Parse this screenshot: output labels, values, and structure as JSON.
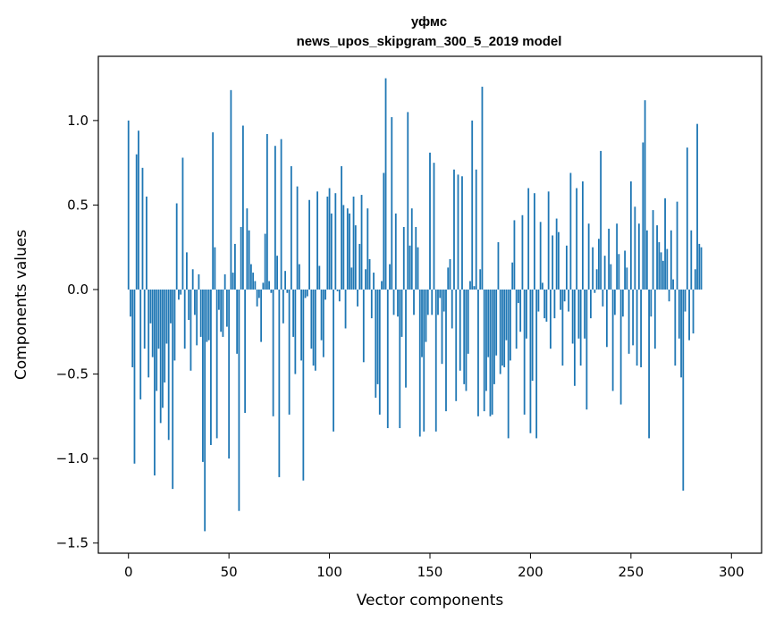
{
  "chart_data": {
    "type": "bar",
    "title_line1": "уфмс",
    "title_line2": "news_upos_skipgram_300_5_2019 model",
    "xlabel": "Vector components",
    "ylabel": "Components values",
    "xlim": [
      -15,
      315
    ],
    "ylim": [
      -1.56,
      1.38
    ],
    "xticks": [
      0,
      50,
      100,
      150,
      200,
      250,
      300
    ],
    "xtick_labels": [
      "0",
      "50",
      "100",
      "150",
      "200",
      "250",
      "300"
    ],
    "yticks": [
      -1.5,
      -1.0,
      -0.5,
      0.0,
      0.5,
      1.0
    ],
    "ytick_labels": [
      "−1.5",
      "−1.0",
      "−0.5",
      "0.0",
      "0.5",
      "1.0"
    ],
    "bar_color": "#1f77b4",
    "values": [
      1.0,
      -0.16,
      -0.46,
      -1.03,
      0.8,
      0.94,
      -0.65,
      0.72,
      -0.35,
      0.55,
      -0.52,
      -0.2,
      -0.4,
      -1.1,
      -0.6,
      -0.35,
      -0.79,
      -0.7,
      -0.55,
      -0.32,
      -0.89,
      -0.2,
      -1.18,
      -0.42,
      0.51,
      -0.06,
      -0.03,
      0.78,
      -0.35,
      0.22,
      -0.18,
      -0.48,
      0.12,
      -0.15,
      -0.33,
      0.09,
      -0.28,
      -1.02,
      -1.43,
      -0.31,
      -0.3,
      -0.92,
      0.93,
      0.25,
      -0.88,
      -0.12,
      -0.25,
      -0.28,
      0.09,
      -0.22,
      -1.0,
      1.18,
      0.1,
      0.27,
      -0.38,
      -1.31,
      0.37,
      0.97,
      -0.73,
      0.48,
      0.35,
      0.15,
      0.1,
      0.05,
      -0.1,
      -0.05,
      -0.31,
      0.04,
      0.33,
      0.92,
      0.05,
      -0.02,
      -0.75,
      0.85,
      0.2,
      -1.11,
      0.89,
      -0.2,
      0.11,
      -0.02,
      -0.74,
      0.73,
      -0.28,
      -0.5,
      0.61,
      0.15,
      -0.42,
      -1.13,
      -0.05,
      -0.04,
      0.53,
      -0.35,
      -0.45,
      -0.48,
      0.58,
      0.14,
      -0.3,
      -0.4,
      -0.06,
      0.55,
      0.6,
      0.45,
      -0.84,
      0.57,
      -0.01,
      -0.07,
      0.73,
      0.5,
      -0.23,
      0.48,
      0.45,
      0.13,
      0.55,
      0.38,
      -0.1,
      0.27,
      0.56,
      -0.43,
      0.12,
      0.48,
      0.18,
      -0.17,
      0.1,
      -0.64,
      -0.56,
      -0.74,
      0.05,
      0.69,
      1.25,
      -0.82,
      0.15,
      1.02,
      -0.15,
      0.45,
      -0.16,
      -0.82,
      -0.28,
      0.37,
      -0.58,
      1.05,
      0.26,
      0.48,
      -0.15,
      0.37,
      0.25,
      -0.87,
      -0.4,
      -0.84,
      -0.31,
      -0.15,
      0.81,
      -0.15,
      0.75,
      -0.84,
      -0.15,
      -0.05,
      -0.44,
      -0.13,
      -0.72,
      0.13,
      0.18,
      -0.23,
      0.71,
      -0.66,
      0.68,
      -0.48,
      0.67,
      -0.56,
      -0.6,
      -0.38,
      0.05,
      1.0,
      0.02,
      0.71,
      -0.75,
      0.12,
      1.2,
      -0.72,
      -0.6,
      -0.4,
      -0.75,
      -0.74,
      -0.56,
      -0.39,
      0.28,
      -0.5,
      -0.45,
      -0.46,
      -0.3,
      -0.88,
      -0.42,
      0.16,
      0.41,
      -0.35,
      -0.08,
      -0.25,
      0.44,
      -0.74,
      -0.29,
      0.6,
      -0.85,
      -0.54,
      0.57,
      -0.88,
      -0.13,
      0.4,
      0.04,
      -0.17,
      -0.19,
      0.58,
      -0.35,
      0.32,
      -0.17,
      0.42,
      0.34,
      -0.12,
      -0.45,
      -0.07,
      0.26,
      -0.13,
      0.69,
      -0.32,
      -0.57,
      0.6,
      -0.29,
      -0.45,
      0.64,
      -0.29,
      -0.71,
      0.39,
      -0.17,
      0.25,
      -0.02,
      0.12,
      0.3,
      0.82,
      -0.1,
      0.2,
      -0.34,
      0.36,
      0.15,
      -0.6,
      -0.15,
      0.39,
      0.21,
      -0.68,
      -0.16,
      0.23,
      0.13,
      -0.38,
      0.64,
      -0.33,
      0.49,
      -0.45,
      0.39,
      -0.46,
      0.87,
      1.12,
      0.35,
      -0.88,
      -0.16,
      0.47,
      -0.35,
      0.38,
      0.28,
      0.22,
      0.17,
      0.54,
      0.24,
      -0.07,
      0.35,
      0.06,
      -0.45,
      0.52,
      -0.29,
      -0.52,
      -1.19,
      -0.13,
      0.84,
      -0.3,
      0.35,
      -0.26,
      0.12,
      0.98,
      0.27,
      0.25
    ]
  }
}
